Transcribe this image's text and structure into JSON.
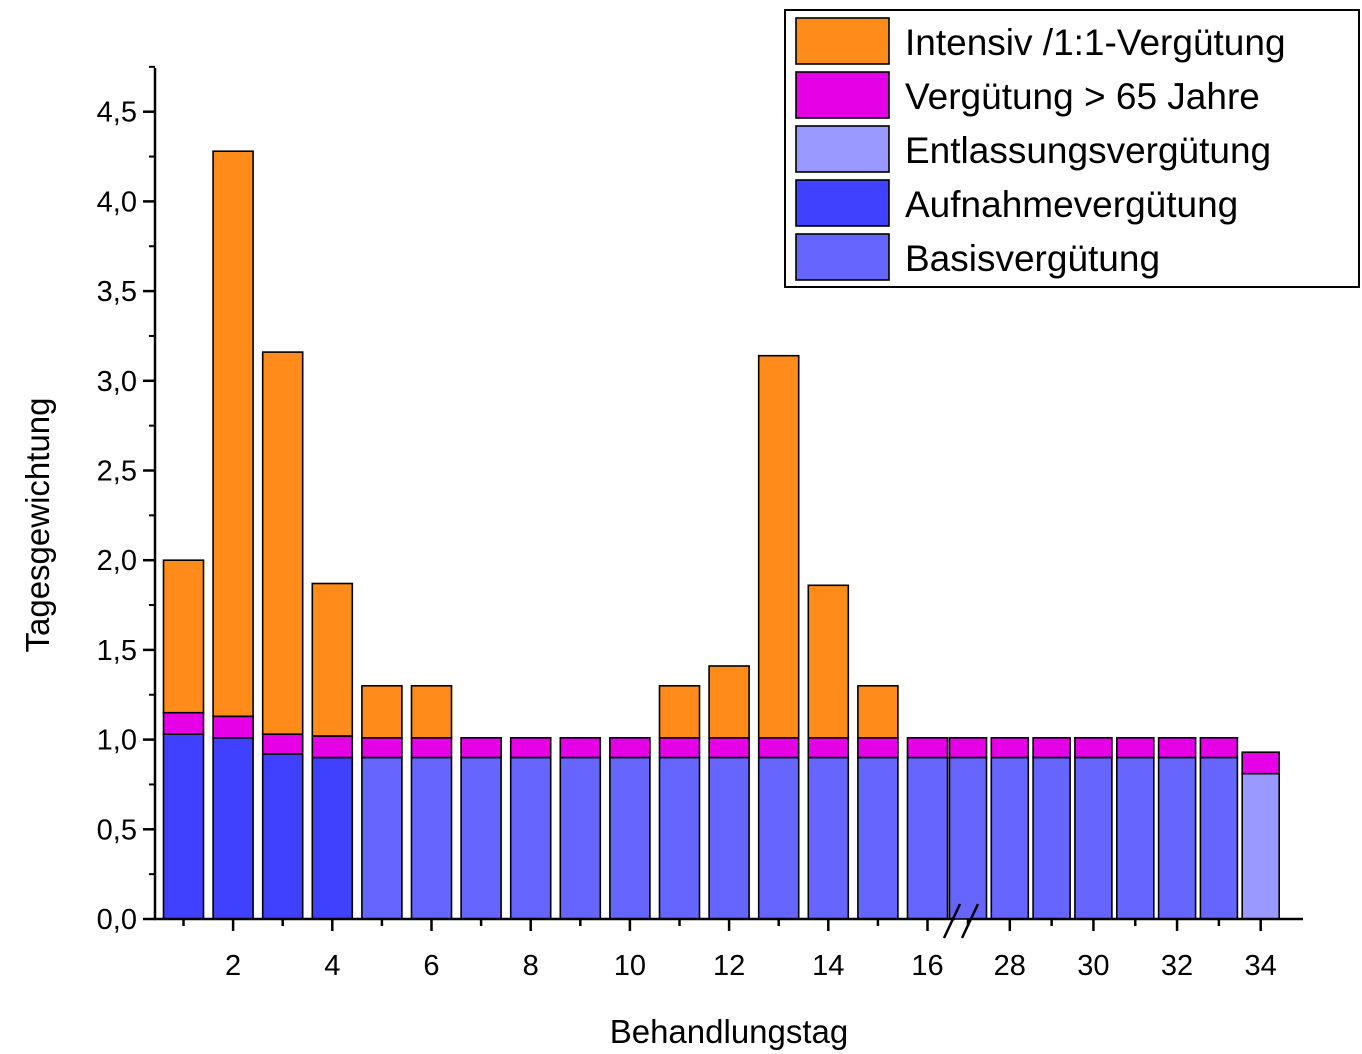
{
  "chart_data": {
    "type": "bar",
    "stacked": true,
    "xlabel": "Behandlungstag",
    "ylabel": "Tagesgewichtung",
    "ylim": [
      0,
      4.75
    ],
    "yticks": [
      "0,0",
      "0,5",
      "1,0",
      "1,5",
      "2,0",
      "2,5",
      "3,0",
      "3,5",
      "4,0",
      "4,5"
    ],
    "xticks": [
      "2",
      "4",
      "6",
      "8",
      "10",
      "12",
      "14",
      "16",
      "28",
      "30",
      "32",
      "34"
    ],
    "axis_break": "between 16 and 27",
    "legend_position": "top-right",
    "categories": [
      1,
      2,
      3,
      4,
      5,
      6,
      7,
      8,
      9,
      10,
      11,
      12,
      13,
      14,
      15,
      16,
      27,
      28,
      29,
      30,
      31,
      32,
      33,
      34
    ],
    "series": [
      {
        "name": "Basisvergütung",
        "color": "#6666ff",
        "values": [
          0,
          0,
          0,
          0,
          0.9,
          0.9,
          0.9,
          0.9,
          0.9,
          0.9,
          0.9,
          0.9,
          0.9,
          0.9,
          0.9,
          0.9,
          0.9,
          0.9,
          0.9,
          0.9,
          0.9,
          0.9,
          0.9,
          0
        ]
      },
      {
        "name": "Aufnahmevergütung",
        "color": "#4040ff",
        "values": [
          1.03,
          1.01,
          0.92,
          0.9,
          0,
          0,
          0,
          0,
          0,
          0,
          0,
          0,
          0,
          0,
          0,
          0,
          0,
          0,
          0,
          0,
          0,
          0,
          0,
          0
        ]
      },
      {
        "name": "Entlassungsvergütung",
        "color": "#9999ff",
        "values": [
          0,
          0,
          0,
          0,
          0,
          0,
          0,
          0,
          0,
          0,
          0,
          0,
          0,
          0,
          0,
          0,
          0,
          0,
          0,
          0,
          0,
          0,
          0,
          0.81
        ]
      },
      {
        "name": "Vergütung > 65 Jahre",
        "color": "#e600e6",
        "values": [
          0.12,
          0.12,
          0.11,
          0.12,
          0.11,
          0.11,
          0.11,
          0.11,
          0.11,
          0.11,
          0.11,
          0.11,
          0.11,
          0.11,
          0.11,
          0.11,
          0.11,
          0.11,
          0.11,
          0.11,
          0.11,
          0.11,
          0.11,
          0.12
        ]
      },
      {
        "name": "Intensiv /1:1-Vergütung",
        "color": "#ff8c1a",
        "values": [
          0.85,
          3.15,
          2.13,
          0.85,
          0.29,
          0.29,
          0,
          0,
          0,
          0,
          0.29,
          0.4,
          2.13,
          0.85,
          0.29,
          0,
          0,
          0,
          0,
          0,
          0,
          0,
          0,
          0
        ]
      }
    ],
    "legend_order": [
      "Intensiv /1:1-Vergütung",
      "Vergütung > 65 Jahre",
      "Entlassungsvergütung",
      "Aufnahmevergütung",
      "Basisvergütung"
    ]
  }
}
